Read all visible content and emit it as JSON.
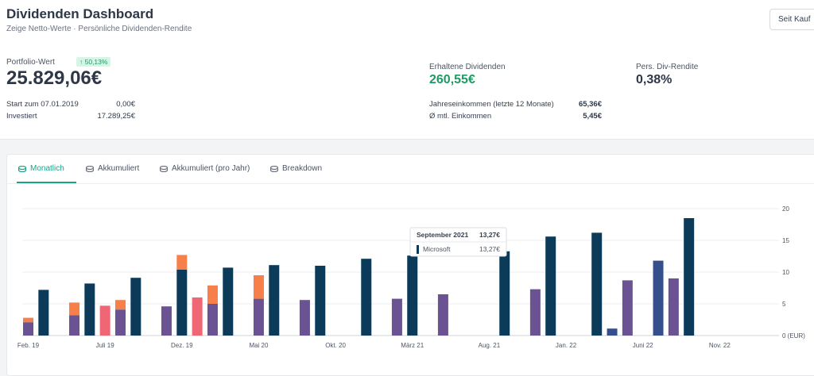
{
  "header": {
    "title": "Dividenden Dashboard",
    "subtitle": "Zeige Netto-Werte · Persönliche Dividenden-Rendite",
    "buy_button": "Seit Kauf"
  },
  "portfolio": {
    "label": "Portfolio-Wert",
    "growth": "↑ 50,13%",
    "value": "25.829,06€",
    "start_label": "Start zum 07.01.2019",
    "start_value": "0,00€",
    "invested_label": "Investiert",
    "invested_value": "17.289,25€"
  },
  "dividends": {
    "label": "Erhaltene Dividenden",
    "value": "260,55€",
    "annual_label": "Jahreseinkommen (letzte 12 Monate)",
    "annual_value": "65,36€",
    "monthly_label": "Ø mtl. Einkommen",
    "monthly_value": "5,45€"
  },
  "yield": {
    "label": "Pers. Div-Rendite",
    "value": "0,38%"
  },
  "tabs": [
    {
      "label": "Monatlich",
      "icon": "coin-stack-icon"
    },
    {
      "label": "Akkumuliert",
      "icon": "coin-stack-icon"
    },
    {
      "label": "Akkumuliert (pro Jahr)",
      "icon": "coin-stack-icon"
    },
    {
      "label": "Breakdown",
      "icon": "coin-stack-icon"
    }
  ],
  "colors": {
    "accent": "#1aa389",
    "growth": "#1e9a63",
    "navy": "#0b3b58",
    "purple": "#6b5393",
    "blue": "#354f8c",
    "orange": "#f77f4a",
    "red": "#ef6674"
  },
  "tooltip": {
    "title": "September 2021",
    "total": "13,27€",
    "series": "Microsoft",
    "value": "13,27€"
  },
  "chart_data": {
    "type": "bar",
    "stacked": true,
    "y_unit": "(EUR)",
    "ylim": [
      0,
      20
    ],
    "yticks": [
      0,
      5,
      10,
      15,
      20
    ],
    "grid": true,
    "xticks": [
      "Feb. 19",
      "Juli 19",
      "Dez. 19",
      "Mai 20",
      "Okt. 20",
      "März 21",
      "Aug. 21",
      "Jan. 22",
      "Juni 22",
      "Nov. 22"
    ],
    "bars": [
      {
        "month": 0,
        "segments": [
          {
            "color": "purple",
            "value": 2.1
          },
          {
            "color": "orange",
            "value": 0.7
          }
        ]
      },
      {
        "month": 1,
        "segments": [
          {
            "color": "navy",
            "value": 7.2
          }
        ]
      },
      {
        "month": 3,
        "segments": [
          {
            "color": "purple",
            "value": 3.2
          },
          {
            "color": "orange",
            "value": 2.0
          }
        ]
      },
      {
        "month": 4,
        "segments": [
          {
            "color": "navy",
            "value": 8.2
          }
        ]
      },
      {
        "month": 5,
        "segments": [
          {
            "color": "red",
            "value": 4.7
          }
        ]
      },
      {
        "month": 6,
        "segments": [
          {
            "color": "purple",
            "value": 4.1
          },
          {
            "color": "orange",
            "value": 1.5
          }
        ]
      },
      {
        "month": 7,
        "segments": [
          {
            "color": "navy",
            "value": 9.1
          }
        ]
      },
      {
        "month": 9,
        "segments": [
          {
            "color": "purple",
            "value": 4.6
          }
        ]
      },
      {
        "month": 10,
        "segments": [
          {
            "color": "navy",
            "value": 10.4
          },
          {
            "color": "orange",
            "value": 2.3
          }
        ]
      },
      {
        "month": 11,
        "segments": [
          {
            "color": "red",
            "value": 6.0
          }
        ]
      },
      {
        "month": 12,
        "segments": [
          {
            "color": "purple",
            "value": 5.0
          },
          {
            "color": "orange",
            "value": 2.9
          }
        ]
      },
      {
        "month": 13,
        "segments": [
          {
            "color": "navy",
            "value": 10.7
          }
        ]
      },
      {
        "month": 15,
        "segments": [
          {
            "color": "purple",
            "value": 5.8
          },
          {
            "color": "orange",
            "value": 3.7
          }
        ]
      },
      {
        "month": 16,
        "segments": [
          {
            "color": "navy",
            "value": 11.1
          }
        ]
      },
      {
        "month": 18,
        "segments": [
          {
            "color": "purple",
            "value": 5.6
          }
        ]
      },
      {
        "month": 19,
        "segments": [
          {
            "color": "navy",
            "value": 11.0
          }
        ]
      },
      {
        "month": 22,
        "segments": [
          {
            "color": "navy",
            "value": 12.1
          }
        ]
      },
      {
        "month": 24,
        "segments": [
          {
            "color": "purple",
            "value": 5.8
          }
        ]
      },
      {
        "month": 25,
        "segments": [
          {
            "color": "navy",
            "value": 12.6
          }
        ]
      },
      {
        "month": 27,
        "segments": [
          {
            "color": "purple",
            "value": 6.5
          }
        ]
      },
      {
        "month": 31,
        "segments": [
          {
            "color": "navy",
            "value": 13.27
          }
        ]
      },
      {
        "month": 33,
        "segments": [
          {
            "color": "purple",
            "value": 7.3
          }
        ]
      },
      {
        "month": 34,
        "segments": [
          {
            "color": "navy",
            "value": 15.6
          }
        ]
      },
      {
        "month": 37,
        "segments": [
          {
            "color": "navy",
            "value": 16.2
          }
        ]
      },
      {
        "month": 38,
        "segments": [
          {
            "color": "blue",
            "value": 1.1
          }
        ]
      },
      {
        "month": 39,
        "segments": [
          {
            "color": "purple",
            "value": 8.7
          }
        ]
      },
      {
        "month": 41,
        "segments": [
          {
            "color": "blue",
            "value": 11.8
          }
        ]
      },
      {
        "month": 42,
        "segments": [
          {
            "color": "purple",
            "value": 9.0
          }
        ]
      },
      {
        "month": 43,
        "segments": [
          {
            "color": "navy",
            "value": 18.5
          }
        ]
      }
    ]
  }
}
